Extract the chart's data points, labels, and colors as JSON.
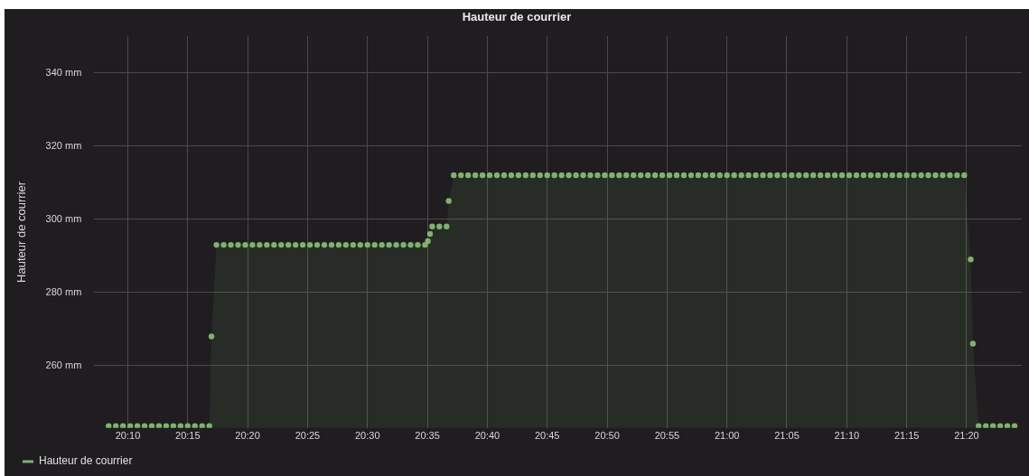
{
  "chart_data": {
    "type": "area",
    "title": "Hauteur de courrier",
    "ylabel": "Hauteur de courrier",
    "x": [
      20.14,
      20.15,
      20.16,
      20.17,
      20.18,
      20.19,
      20.2,
      20.21,
      20.22,
      20.23,
      20.24,
      20.25,
      20.26,
      20.27,
      20.28,
      20.283,
      20.29,
      20.3,
      20.31,
      20.32,
      20.33,
      20.34,
      20.35,
      20.36,
      20.37,
      20.38,
      20.39,
      20.4,
      20.41,
      20.42,
      20.43,
      20.44,
      20.45,
      20.46,
      20.47,
      20.48,
      20.49,
      20.5,
      20.51,
      20.52,
      20.53,
      20.54,
      20.55,
      20.56,
      20.57,
      20.58,
      20.584,
      20.587,
      20.59,
      20.6,
      20.61,
      20.613,
      20.62,
      20.63,
      20.64,
      20.65,
      20.66,
      20.67,
      20.68,
      20.69,
      20.7,
      20.71,
      20.72,
      20.73,
      20.74,
      20.75,
      20.76,
      20.77,
      20.78,
      20.79,
      20.8,
      20.81,
      20.82,
      20.83,
      20.84,
      20.85,
      20.86,
      20.87,
      20.88,
      20.89,
      20.9,
      20.91,
      20.92,
      20.93,
      20.94,
      20.95,
      20.96,
      20.97,
      20.98,
      20.99,
      21,
      21.01,
      21.02,
      21.03,
      21.04,
      21.05,
      21.06,
      21.07,
      21.08,
      21.09,
      21.1,
      21.11,
      21.12,
      21.13,
      21.14,
      21.15,
      21.16,
      21.17,
      21.18,
      21.19,
      21.2,
      21.21,
      21.22,
      21.23,
      21.24,
      21.25,
      21.26,
      21.27,
      21.28,
      21.29,
      21.3,
      21.31,
      21.32,
      21.33,
      21.339,
      21.342,
      21.35,
      21.36,
      21.37,
      21.38,
      21.39,
      21.4
    ],
    "series": [
      {
        "name": "Hauteur de courrier",
        "color": "#7eb26d",
        "values": [
          243.5,
          243.5,
          243.5,
          243.5,
          243.5,
          243.5,
          243.5,
          243.5,
          243.5,
          243.5,
          243.5,
          243.5,
          243.5,
          243.5,
          243.5,
          268,
          293,
          293,
          293,
          293,
          293,
          293,
          293,
          293,
          293,
          293,
          293,
          293,
          293,
          293,
          293,
          293,
          293,
          293,
          293,
          293,
          293,
          293,
          293,
          293,
          293,
          293,
          293,
          293,
          293,
          293,
          294,
          296,
          298,
          298,
          298,
          305,
          312,
          312,
          312,
          312,
          312,
          312,
          312,
          312,
          312,
          312,
          312,
          312,
          312,
          312,
          312,
          312,
          312,
          312,
          312,
          312,
          312,
          312,
          312,
          312,
          312,
          312,
          312,
          312,
          312,
          312,
          312,
          312,
          312,
          312,
          312,
          312,
          312,
          312,
          312,
          312,
          312,
          312,
          312,
          312,
          312,
          312,
          312,
          312,
          312,
          312,
          312,
          312,
          312,
          312,
          312,
          312,
          312,
          312,
          312,
          312,
          312,
          312,
          312,
          312,
          312,
          312,
          312,
          312,
          312,
          312,
          312,
          312,
          289,
          266,
          243.5,
          243.5,
          243.5,
          243.5,
          243.5,
          243.5
        ]
      }
    ],
    "xlim": [
      20.12,
      21.41
    ],
    "ylim": [
      243,
      350
    ],
    "xticks": [
      {
        "value": 20.1667,
        "label": "20:10"
      },
      {
        "value": 20.25,
        "label": "20:15"
      },
      {
        "value": 20.3333,
        "label": "20:20"
      },
      {
        "value": 20.4167,
        "label": "20:25"
      },
      {
        "value": 20.5,
        "label": "20:30"
      },
      {
        "value": 20.5833,
        "label": "20:35"
      },
      {
        "value": 20.6667,
        "label": "20:40"
      },
      {
        "value": 20.75,
        "label": "20:45"
      },
      {
        "value": 20.8333,
        "label": "20:50"
      },
      {
        "value": 20.9167,
        "label": "20:55"
      },
      {
        "value": 21,
        "label": "21:00"
      },
      {
        "value": 21.0833,
        "label": "21:05"
      },
      {
        "value": 21.1667,
        "label": "21:10"
      },
      {
        "value": 21.25,
        "label": "21:15"
      },
      {
        "value": 21.3333,
        "label": "21:20"
      }
    ],
    "yticks": [
      {
        "value": 260,
        "label": "260 mm"
      },
      {
        "value": 280,
        "label": "280 mm"
      },
      {
        "value": 300,
        "label": "300 mm"
      },
      {
        "value": 320,
        "label": "320 mm"
      },
      {
        "value": 340,
        "label": "340 mm"
      }
    ],
    "grid": true,
    "legend": "bottom left",
    "marker": "circle"
  }
}
